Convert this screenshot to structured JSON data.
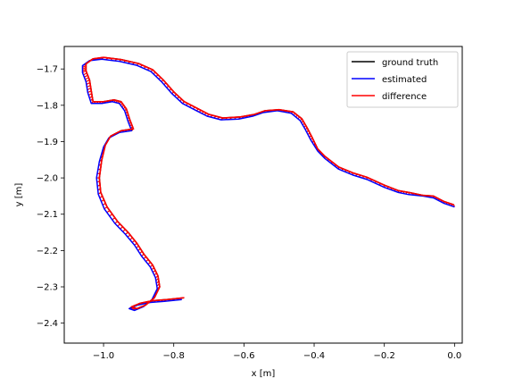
{
  "chart_data": {
    "type": "line",
    "title": "",
    "xlabel": "x [m]",
    "ylabel": "y [m]",
    "xlim": [
      -1.112,
      0.022
    ],
    "ylim": [
      -2.455,
      -1.638
    ],
    "x_ticks": [
      -1.0,
      -0.8,
      -0.6,
      -0.4,
      -0.2,
      0.0
    ],
    "x_tick_labels": [
      "−1.0",
      "−0.8",
      "−0.6",
      "−0.4",
      "−0.2",
      "0.0"
    ],
    "y_ticks": [
      -2.4,
      -2.3,
      -2.2,
      -2.1,
      -2.0,
      -1.9,
      -1.8,
      -1.7
    ],
    "y_tick_labels": [
      "−2.4",
      "−2.3",
      "−2.2",
      "−2.1",
      "−2.0",
      "−1.9",
      "−1.8",
      "−1.7"
    ],
    "grid": false,
    "legend_position": "top-right",
    "series": [
      {
        "name": "ground truth",
        "color": "#000000",
        "points": [
          [
            -0.002,
            -2.074
          ],
          [
            -0.03,
            -2.065
          ],
          [
            -0.06,
            -2.05
          ],
          [
            -0.09,
            -2.048
          ],
          [
            -0.13,
            -2.04
          ],
          [
            -0.16,
            -2.035
          ],
          [
            -0.2,
            -2.02
          ],
          [
            -0.25,
            -1.998
          ],
          [
            -0.29,
            -1.986
          ],
          [
            -0.33,
            -1.97
          ],
          [
            -0.37,
            -1.94
          ],
          [
            -0.39,
            -1.92
          ],
          [
            -0.405,
            -1.89
          ],
          [
            -0.42,
            -1.862
          ],
          [
            -0.435,
            -1.837
          ],
          [
            -0.46,
            -1.818
          ],
          [
            -0.5,
            -1.812
          ],
          [
            -0.54,
            -1.815
          ],
          [
            -0.57,
            -1.825
          ],
          [
            -0.61,
            -1.832
          ],
          [
            -0.66,
            -1.835
          ],
          [
            -0.7,
            -1.825
          ],
          [
            -0.73,
            -1.81
          ],
          [
            -0.77,
            -1.79
          ],
          [
            -0.8,
            -1.763
          ],
          [
            -0.83,
            -1.73
          ],
          [
            -0.86,
            -1.702
          ],
          [
            -0.9,
            -1.685
          ],
          [
            -0.95,
            -1.674
          ],
          [
            -1.0,
            -1.668
          ],
          [
            -1.03,
            -1.672
          ],
          [
            -1.05,
            -1.686
          ],
          [
            -1.05,
            -1.705
          ],
          [
            -1.04,
            -1.73
          ],
          [
            -1.035,
            -1.76
          ],
          [
            -1.03,
            -1.79
          ],
          [
            -1.0,
            -1.79
          ],
          [
            -0.97,
            -1.785
          ],
          [
            -0.95,
            -1.79
          ],
          [
            -0.935,
            -1.81
          ],
          [
            -0.925,
            -1.84
          ],
          [
            -0.915,
            -1.865
          ],
          [
            -0.95,
            -1.87
          ],
          [
            -0.98,
            -1.885
          ],
          [
            -0.995,
            -1.91
          ],
          [
            -1.005,
            -1.95
          ],
          [
            -1.012,
            -2.0
          ],
          [
            -1.008,
            -2.04
          ],
          [
            -0.99,
            -2.08
          ],
          [
            -0.96,
            -2.12
          ],
          [
            -0.93,
            -2.15
          ],
          [
            -0.905,
            -2.18
          ],
          [
            -0.885,
            -2.21
          ],
          [
            -0.86,
            -2.24
          ],
          [
            -0.845,
            -2.27
          ],
          [
            -0.84,
            -2.3
          ],
          [
            -0.855,
            -2.33
          ],
          [
            -0.88,
            -2.35
          ],
          [
            -0.905,
            -2.36
          ],
          [
            -0.92,
            -2.355
          ],
          [
            -0.895,
            -2.345
          ],
          [
            -0.86,
            -2.338
          ],
          [
            -0.82,
            -2.335
          ],
          [
            -0.77,
            -2.33
          ]
        ]
      },
      {
        "name": "estimated",
        "color": "#0000ff",
        "points": [
          [
            0.0,
            -2.08
          ],
          [
            -0.03,
            -2.07
          ],
          [
            -0.06,
            -2.055
          ],
          [
            -0.09,
            -2.05
          ],
          [
            -0.13,
            -2.046
          ],
          [
            -0.16,
            -2.04
          ],
          [
            -0.2,
            -2.026
          ],
          [
            -0.25,
            -2.004
          ],
          [
            -0.29,
            -1.992
          ],
          [
            -0.33,
            -1.976
          ],
          [
            -0.37,
            -1.946
          ],
          [
            -0.39,
            -1.926
          ],
          [
            -0.41,
            -1.895
          ],
          [
            -0.425,
            -1.867
          ],
          [
            -0.44,
            -1.842
          ],
          [
            -0.465,
            -1.822
          ],
          [
            -0.505,
            -1.815
          ],
          [
            -0.545,
            -1.82
          ],
          [
            -0.575,
            -1.83
          ],
          [
            -0.615,
            -1.838
          ],
          [
            -0.665,
            -1.84
          ],
          [
            -0.705,
            -1.83
          ],
          [
            -0.735,
            -1.815
          ],
          [
            -0.775,
            -1.795
          ],
          [
            -0.805,
            -1.768
          ],
          [
            -0.835,
            -1.735
          ],
          [
            -0.865,
            -1.707
          ],
          [
            -0.905,
            -1.69
          ],
          [
            -0.955,
            -1.679
          ],
          [
            -1.005,
            -1.673
          ],
          [
            -1.04,
            -1.677
          ],
          [
            -1.06,
            -1.691
          ],
          [
            -1.06,
            -1.71
          ],
          [
            -1.05,
            -1.735
          ],
          [
            -1.045,
            -1.765
          ],
          [
            -1.035,
            -1.795
          ],
          [
            -1.005,
            -1.795
          ],
          [
            -0.975,
            -1.79
          ],
          [
            -0.955,
            -1.795
          ],
          [
            -0.94,
            -1.815
          ],
          [
            -0.93,
            -1.845
          ],
          [
            -0.92,
            -1.87
          ],
          [
            -0.955,
            -1.875
          ],
          [
            -0.985,
            -1.89
          ],
          [
            -1.0,
            -1.915
          ],
          [
            -1.012,
            -1.955
          ],
          [
            -1.02,
            -2.0
          ],
          [
            -1.015,
            -2.045
          ],
          [
            -0.998,
            -2.085
          ],
          [
            -0.968,
            -2.125
          ],
          [
            -0.938,
            -2.155
          ],
          [
            -0.912,
            -2.185
          ],
          [
            -0.892,
            -2.215
          ],
          [
            -0.867,
            -2.245
          ],
          [
            -0.852,
            -2.275
          ],
          [
            -0.847,
            -2.305
          ],
          [
            -0.862,
            -2.335
          ],
          [
            -0.887,
            -2.355
          ],
          [
            -0.912,
            -2.365
          ],
          [
            -0.927,
            -2.36
          ],
          [
            -0.902,
            -2.35
          ],
          [
            -0.867,
            -2.343
          ],
          [
            -0.827,
            -2.34
          ],
          [
            -0.777,
            -2.335
          ]
        ]
      },
      {
        "name": "difference",
        "color": "#ff0000"
      }
    ]
  }
}
